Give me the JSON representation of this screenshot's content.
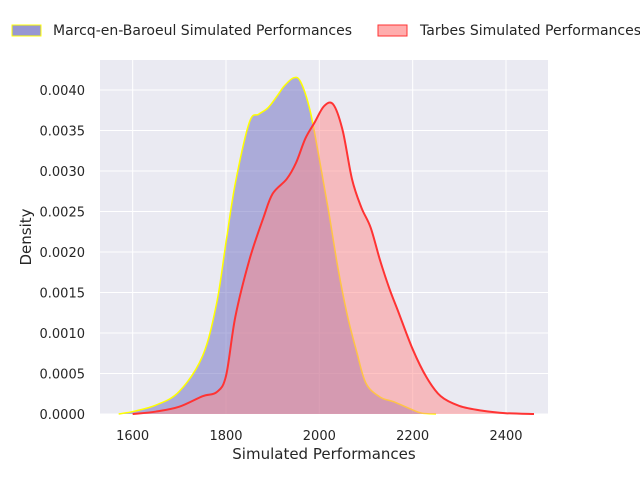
{
  "chart_data": {
    "type": "area",
    "xlabel": "Simulated Performances",
    "ylabel": "Density",
    "xlim": [
      1530,
      2490
    ],
    "ylim": [
      0,
      0.00437
    ],
    "x_ticks": [
      1600,
      1800,
      2000,
      2200,
      2400
    ],
    "x_tick_labels": [
      "1600",
      "1800",
      "2000",
      "2200",
      "2400"
    ],
    "y_ticks": [
      0,
      0.0005,
      0.001,
      0.0015,
      0.002,
      0.0025,
      0.003,
      0.0035,
      0.004
    ],
    "y_tick_labels": [
      "0.0000",
      "0.0005",
      "0.0010",
      "0.0015",
      "0.0020",
      "0.0025",
      "0.0030",
      "0.0035",
      "0.0040"
    ],
    "grid": true,
    "legend_position": "top",
    "background": "#eaeaf2",
    "series": [
      {
        "name": "Marcq-en-Baroeul Simulated Performances",
        "fill_color": "#6b6bbf",
        "fill_opacity": 0.5,
        "line_color": "#ffff00",
        "x": [
          1570,
          1600,
          1650,
          1700,
          1750,
          1780,
          1800,
          1820,
          1850,
          1870,
          1890,
          1910,
          1925,
          1945,
          1960,
          1980,
          2000,
          2020,
          2040,
          2060,
          2080,
          2100,
          2130,
          2160,
          2200,
          2220,
          2250
        ],
        "y": [
          0,
          3e-05,
          0.00011,
          0.00028,
          0.00072,
          0.00137,
          0.00212,
          0.00285,
          0.0036,
          0.0037,
          0.00378,
          0.00393,
          0.00405,
          0.00415,
          0.0041,
          0.00375,
          0.00315,
          0.0025,
          0.0018,
          0.00122,
          0.00077,
          0.00038,
          0.00021,
          0.00015,
          5e-05,
          1e-05,
          0
        ]
      },
      {
        "name": "Tarbes Simulated Performances",
        "fill_color": "#ff8a8a",
        "fill_opacity": 0.5,
        "line_color": "#ff3333",
        "x": [
          1600,
          1650,
          1700,
          1750,
          1780,
          1800,
          1820,
          1850,
          1880,
          1900,
          1930,
          1950,
          1970,
          1990,
          2010,
          2030,
          2050,
          2070,
          2090,
          2110,
          2130,
          2150,
          2170,
          2200,
          2230,
          2260,
          2300,
          2350,
          2400,
          2460
        ],
        "y": [
          0,
          3e-05,
          9e-05,
          0.00022,
          0.00027,
          0.00047,
          0.0012,
          0.0019,
          0.00242,
          0.00272,
          0.0029,
          0.0031,
          0.0034,
          0.0036,
          0.0038,
          0.00382,
          0.0035,
          0.0029,
          0.00255,
          0.0023,
          0.0019,
          0.00155,
          0.00125,
          0.0008,
          0.00045,
          0.00022,
          0.0001,
          4e-05,
          1e-05,
          0
        ]
      }
    ]
  }
}
